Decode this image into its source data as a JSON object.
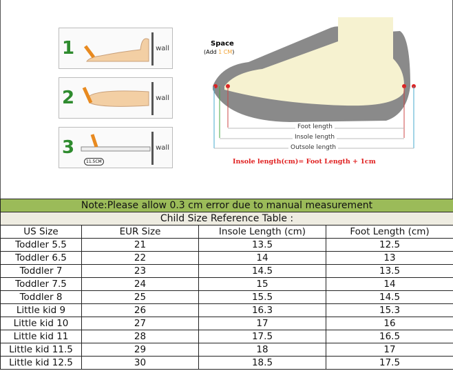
{
  "illustration": {
    "steps": [
      {
        "number": "1",
        "wall_label": "wall"
      },
      {
        "number": "2",
        "wall_label": "wall"
      },
      {
        "number": "3",
        "wall_label": "wall",
        "measure_label": "11.5CM"
      }
    ],
    "space_label": "Space",
    "space_add_prefix": "(Add ",
    "space_add_value": "1 CM",
    "space_add_suffix": ")",
    "foot_length": "Foot length",
    "insole_length": "Insole length",
    "outsole_length": "Outsole length",
    "formula": "Insole length(cm)= Foot Length + 1cm"
  },
  "table": {
    "note": "Note:Please allow 0.3 cm error due to manual measurement",
    "title": "Child Size Reference Table :",
    "headers": [
      "US Size",
      "EUR Size",
      "Insole Length (cm)",
      "Foot Length (cm)"
    ],
    "rows": [
      [
        "Toddler 5.5",
        "21",
        "13.5",
        "12.5"
      ],
      [
        "Toddler 6.5",
        "22",
        "14",
        "13"
      ],
      [
        "Toddler 7",
        "23",
        "14.5",
        "13.5"
      ],
      [
        "Toddler 7.5",
        "24",
        "15",
        "14"
      ],
      [
        "Toddler 8",
        "25",
        "15.5",
        "14.5"
      ],
      [
        "Little kid 9",
        "26",
        "16.3",
        "15.3"
      ],
      [
        "Little kid 10",
        "27",
        "17",
        "16"
      ],
      [
        "Little kid 11",
        "28",
        "17.5",
        "16.5"
      ],
      [
        "Little kid 11.5",
        "29",
        "18",
        "17"
      ],
      [
        "Little kid 12.5",
        "30",
        "18.5",
        "17.5"
      ]
    ]
  },
  "colors": {
    "note_bg": "#9bbb59",
    "title_bg": "#eeece1",
    "formula": "#e02020",
    "accent_orange": "#f0a030"
  }
}
